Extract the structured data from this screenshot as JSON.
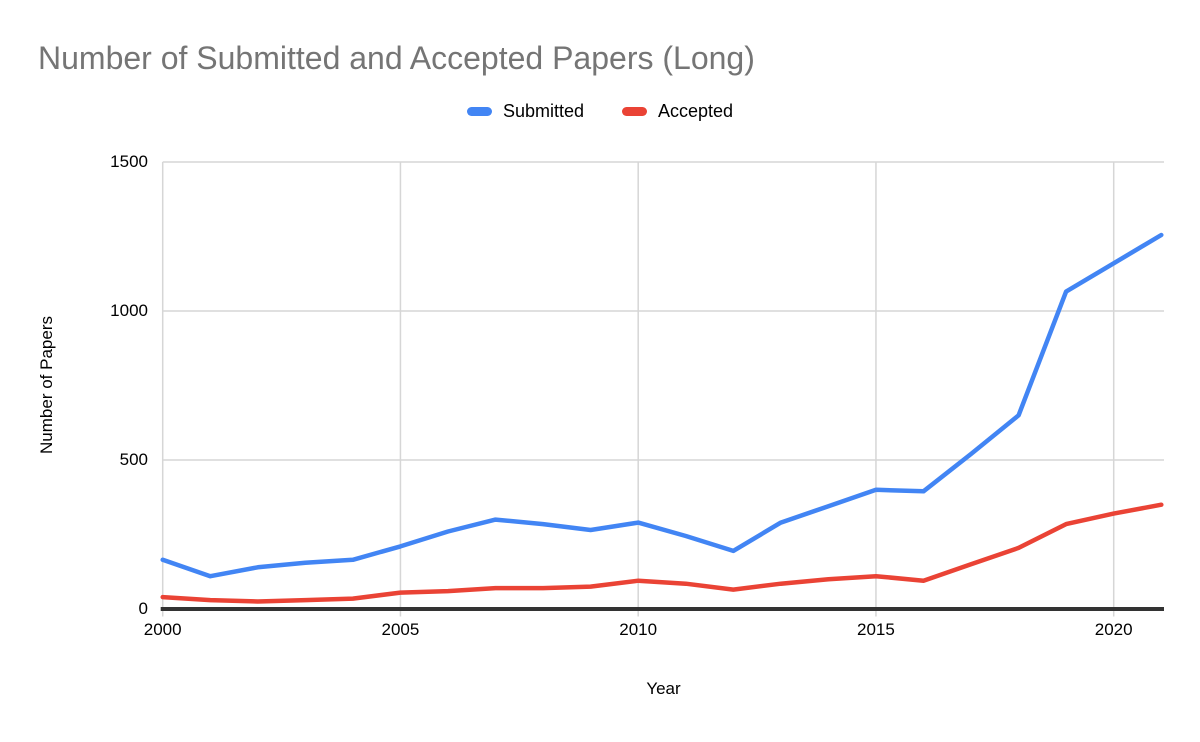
{
  "title": "Number of Submitted and Accepted Papers (Long)",
  "legend": {
    "items": [
      "Submitted",
      "Accepted"
    ]
  },
  "colors": {
    "title_text": "#757575",
    "axis_text": "#000000",
    "gridline": "#d6d6d6",
    "axis_line": "#333333",
    "submitted": "#4285f4",
    "accepted": "#ea4335",
    "background": "#ffffff"
  },
  "chart_data": {
    "type": "line",
    "title": "Number of Submitted and Accepted Papers (Long)",
    "xlabel": "Year",
    "ylabel": "Number of Papers",
    "x": [
      2000,
      2001,
      2002,
      2003,
      2004,
      2005,
      2006,
      2007,
      2008,
      2009,
      2010,
      2011,
      2012,
      2013,
      2014,
      2015,
      2016,
      2017,
      2018,
      2019,
      2020,
      2021
    ],
    "series": [
      {
        "name": "Submitted",
        "color": "#4285f4",
        "values": [
          165,
          110,
          140,
          155,
          165,
          210,
          260,
          300,
          285,
          265,
          290,
          245,
          195,
          290,
          345,
          400,
          395,
          520,
          650,
          1065,
          1160,
          1255
        ]
      },
      {
        "name": "Accepted",
        "color": "#ea4335",
        "values": [
          40,
          30,
          25,
          30,
          35,
          55,
          60,
          70,
          70,
          75,
          95,
          85,
          65,
          85,
          100,
          110,
          95,
          150,
          205,
          285,
          320,
          350
        ]
      }
    ],
    "ylim": [
      0,
      1500
    ],
    "yticks": [
      0,
      500,
      1000,
      1500
    ],
    "xticks": [
      2000,
      2005,
      2010,
      2015,
      2020
    ],
    "grid": true,
    "legend_position": "top"
  }
}
